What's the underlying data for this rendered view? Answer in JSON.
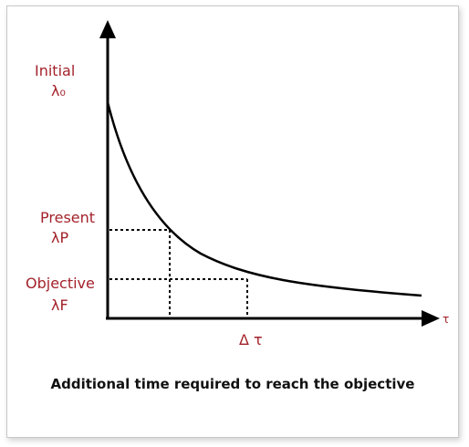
{
  "labels": {
    "initial": "Initial",
    "lambda0": "λ₀",
    "present": "Present",
    "lambdaP": "λP",
    "objective": "Objective",
    "lambdaF": "λF",
    "x_axis": "τ",
    "delta_tau": "Δ τ"
  },
  "caption": "Additional time required to reach the objective",
  "colors": {
    "label": "#a3222b",
    "axis": "#000000",
    "curve": "#000000",
    "guide": "#000000",
    "caption": "#111111"
  }
}
